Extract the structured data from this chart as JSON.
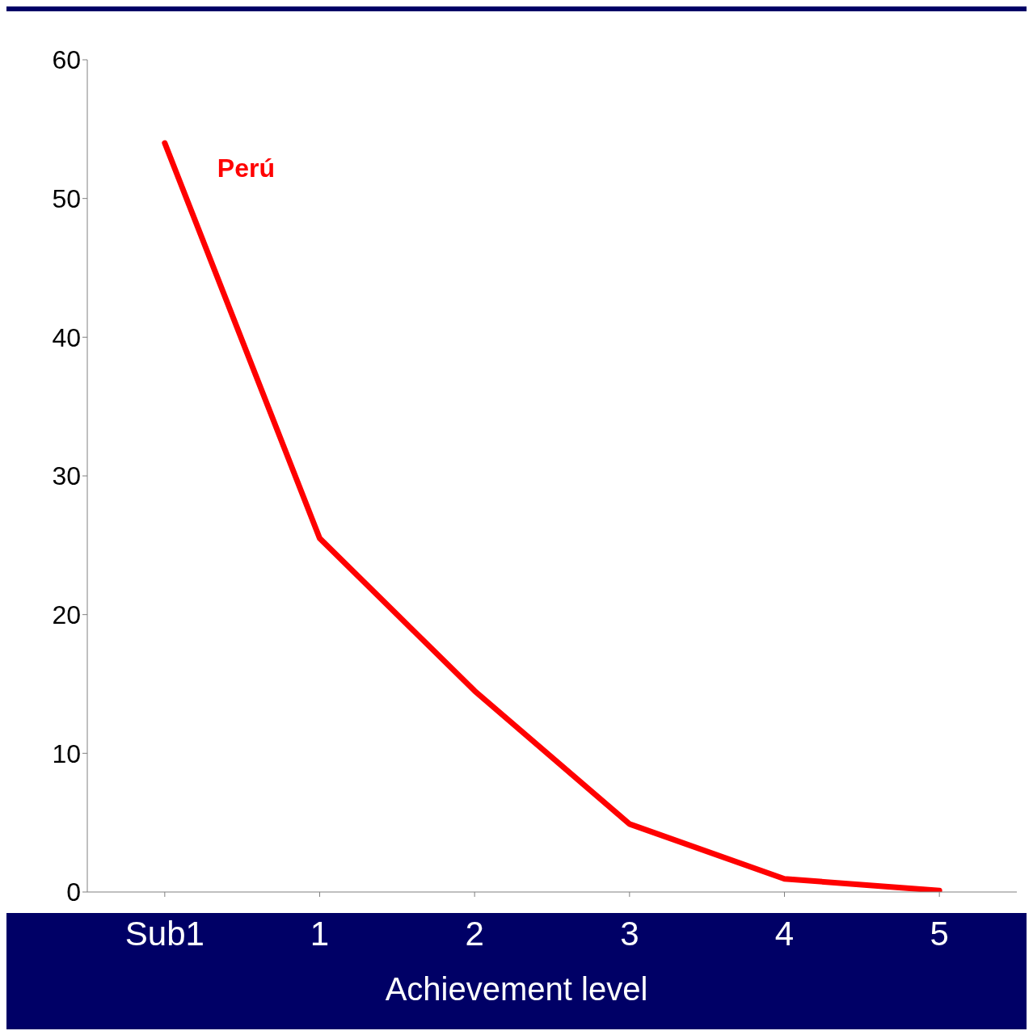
{
  "chart_data": {
    "type": "line",
    "xlabel": "Achievement level",
    "categories": [
      "Sub1",
      "1",
      "2",
      "3",
      "4",
      "5"
    ],
    "series": [
      {
        "name": "Perú",
        "color": "#ff0000",
        "values": [
          54.0,
          25.5,
          14.5,
          4.9,
          0.95,
          0.1
        ]
      }
    ],
    "ylim": [
      0,
      60
    ],
    "yticks": [
      0,
      10,
      20,
      30,
      40,
      50,
      60
    ],
    "grid": false,
    "legend": false,
    "marker": "none",
    "line_style": "solid"
  }
}
